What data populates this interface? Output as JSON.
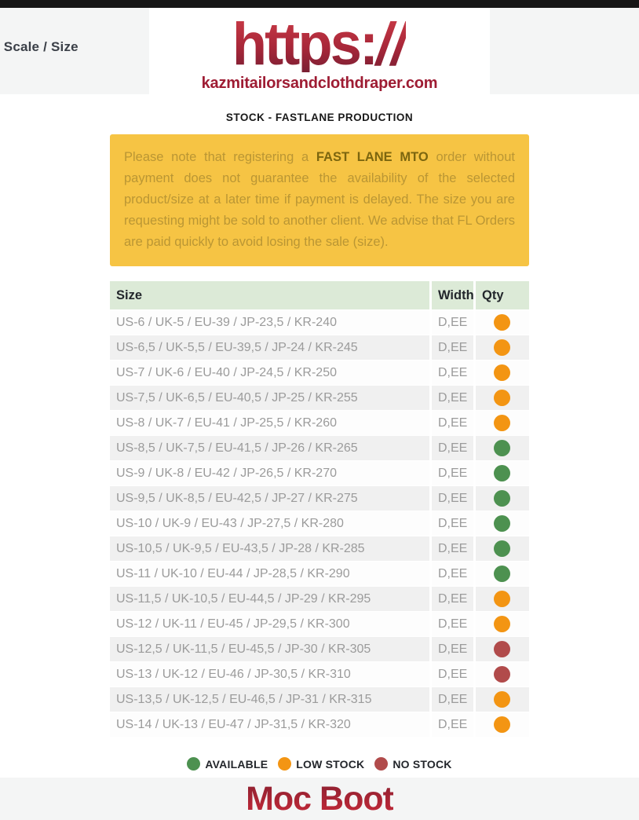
{
  "header": {
    "top_left_label": "t Scale / Size",
    "logo": {
      "text_main": "https:",
      "text_slashes": "//",
      "domain": "kazmitailorsandclothdraper.com"
    },
    "heading": "STOCK - FASTLANE PRODUCTION"
  },
  "notice": {
    "text_before": "Please note that registering a ",
    "text_bold": "FAST LANE MTO",
    "text_after": " order without payment does not guarantee the availability of the selected product/size at a later time if payment is delayed. The size you are requesting might be sold to another client. We advise that FL Orders are paid quickly to avoid losing the sale (size)."
  },
  "table": {
    "columns": [
      "Size",
      "Width",
      "Qty"
    ],
    "rows": [
      {
        "size": "US-6 / UK-5 / EU-39 / JP-23,5 / KR-240",
        "width": "D,EE",
        "status": "low-stock"
      },
      {
        "size": "US-6,5 / UK-5,5 / EU-39,5 / JP-24 / KR-245",
        "width": "D,EE",
        "status": "low-stock"
      },
      {
        "size": "US-7 / UK-6 / EU-40 / JP-24,5 / KR-250",
        "width": "D,EE",
        "status": "low-stock"
      },
      {
        "size": "US-7,5 / UK-6,5 / EU-40,5 / JP-25 / KR-255",
        "width": "D,EE",
        "status": "low-stock"
      },
      {
        "size": "US-8 / UK-7 / EU-41 / JP-25,5 / KR-260",
        "width": "D,EE",
        "status": "low-stock"
      },
      {
        "size": "US-8,5 / UK-7,5 / EU-41,5 / JP-26 / KR-265",
        "width": "D,EE",
        "status": "available"
      },
      {
        "size": "US-9 / UK-8 / EU-42 / JP-26,5 / KR-270",
        "width": "D,EE",
        "status": "available"
      },
      {
        "size": "US-9,5 / UK-8,5 / EU-42,5 / JP-27 / KR-275",
        "width": "D,EE",
        "status": "available"
      },
      {
        "size": "US-10 / UK-9 / EU-43 / JP-27,5 / KR-280",
        "width": "D,EE",
        "status": "available"
      },
      {
        "size": "US-10,5 / UK-9,5 / EU-43,5 / JP-28 / KR-285",
        "width": "D,EE",
        "status": "available"
      },
      {
        "size": "US-11 / UK-10 / EU-44 / JP-28,5 / KR-290",
        "width": "D,EE",
        "status": "available"
      },
      {
        "size": "US-11,5 / UK-10,5 / EU-44,5 / JP-29 / KR-295",
        "width": "D,EE",
        "status": "low-stock"
      },
      {
        "size": "US-12 / UK-11 / EU-45 / JP-29,5 / KR-300",
        "width": "D,EE",
        "status": "low-stock"
      },
      {
        "size": "US-12,5 / UK-11,5 / EU-45,5 / JP-30 / KR-305",
        "width": "D,EE",
        "status": "no-stock"
      },
      {
        "size": "US-13 / UK-12 / EU-46 / JP-30,5 / KR-310",
        "width": "D,EE",
        "status": "no-stock"
      },
      {
        "size": "US-13,5 / UK-12,5 / EU-46,5 / JP-31 / KR-315",
        "width": "D,EE",
        "status": "low-stock"
      },
      {
        "size": "US-14 / UK-13 / EU-47 / JP-31,5 / KR-320",
        "width": "D,EE",
        "status": "low-stock"
      }
    ]
  },
  "legend": {
    "items": [
      {
        "label": "AVAILABLE",
        "status": "available"
      },
      {
        "label": "LOW STOCK",
        "status": "low-stock"
      },
      {
        "label": "NO STOCK",
        "status": "no-stock"
      }
    ]
  },
  "status_colors": {
    "available": "#4d9150",
    "low-stock": "#f39513",
    "no-stock": "#b14b4b"
  },
  "colors": {
    "brand_red_dark": "#7a1f33",
    "brand_red_bright": "#c83a46",
    "domain_red": "#9e1c33",
    "notice_bg": "#f6c444",
    "notice_text": "#ba9634",
    "notice_bold_text": "#7c660f",
    "table_header_bg": "#dcead7",
    "top_bar": "#161616",
    "strip_bg": "#f4f5f5"
  },
  "footer": {
    "product_name": "Moc Boot"
  }
}
